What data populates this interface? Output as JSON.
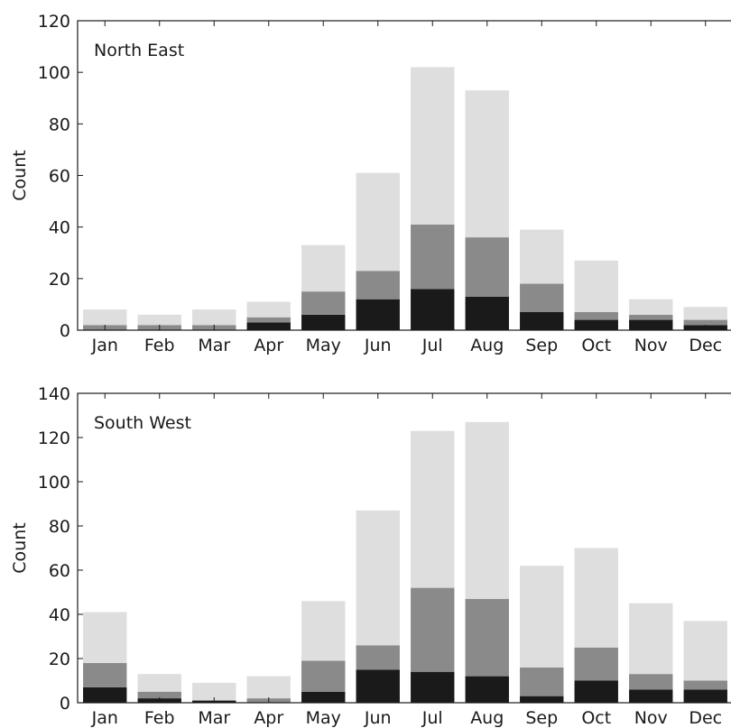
{
  "chart_data": [
    {
      "type": "bar",
      "stacked": true,
      "title": "North East",
      "xlabel": "",
      "ylabel": "Count",
      "ylim": [
        0,
        120
      ],
      "yticks": [
        0,
        20,
        40,
        60,
        80,
        100,
        120
      ],
      "categories": [
        "Jan",
        "Feb",
        "Mar",
        "Apr",
        "May",
        "Jun",
        "Jul",
        "Aug",
        "Sep",
        "Oct",
        "Nov",
        "Dec"
      ],
      "series": [
        {
          "color": "#1a1a1a",
          "values": [
            0,
            0,
            0,
            3,
            6,
            12,
            16,
            13,
            7,
            4,
            4,
            2
          ]
        },
        {
          "color": "#8a8a8a",
          "values": [
            2,
            2,
            2,
            2,
            9,
            11,
            25,
            23,
            11,
            3,
            2,
            2
          ]
        },
        {
          "color": "#dedede",
          "values": [
            6,
            4,
            6,
            6,
            18,
            38,
            61,
            57,
            21,
            20,
            6,
            5
          ]
        }
      ],
      "grid": false
    },
    {
      "type": "bar",
      "stacked": true,
      "title": "South West",
      "xlabel": "",
      "ylabel": "Count",
      "ylim": [
        0,
        140
      ],
      "yticks": [
        0,
        20,
        40,
        60,
        80,
        100,
        120,
        140
      ],
      "categories": [
        "Jan",
        "Feb",
        "Mar",
        "Apr",
        "May",
        "Jun",
        "Jul",
        "Aug",
        "Sep",
        "Oct",
        "Nov",
        "Dec"
      ],
      "series": [
        {
          "color": "#1a1a1a",
          "values": [
            7,
            2,
            1,
            0,
            5,
            15,
            14,
            12,
            3,
            10,
            6,
            6
          ]
        },
        {
          "color": "#8a8a8a",
          "values": [
            11,
            3,
            0,
            2,
            14,
            11,
            38,
            35,
            13,
            15,
            7,
            4
          ]
        },
        {
          "color": "#dedede",
          "values": [
            23,
            8,
            8,
            10,
            27,
            61,
            71,
            80,
            46,
            45,
            32,
            27
          ]
        }
      ],
      "grid": false
    }
  ]
}
